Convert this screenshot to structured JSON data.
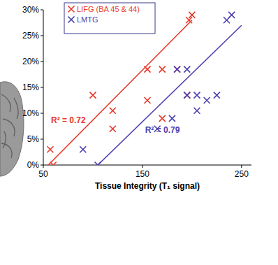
{
  "chart_data": {
    "type": "scatter",
    "x_label": "Tissue Integrity (T₁ signal)",
    "xlim": [
      50,
      260
    ],
    "ylim": [
      0,
      30
    ],
    "xticks": [
      50,
      150,
      250
    ],
    "yticks": [
      {
        "value": 0,
        "label": "0%"
      },
      {
        "value": 5,
        "label": "5%"
      },
      {
        "value": 10,
        "label": "10%"
      },
      {
        "value": 15,
        "label": "15%"
      },
      {
        "value": 20,
        "label": "20%"
      },
      {
        "value": 25,
        "label": "25%"
      },
      {
        "value": 30,
        "label": "30%"
      }
    ],
    "legend": "upper left",
    "marker": "x",
    "series": [
      {
        "name": "LIFG (BA 45 & 44)",
        "color": "#e8382a",
        "x": [
          57,
          60,
          100,
          120,
          120,
          155,
          155,
          170,
          170,
          185,
          195,
          197,
          200
        ],
        "values": [
          3,
          0,
          13.5,
          7,
          10.5,
          12.5,
          18.5,
          18.5,
          9,
          18.5,
          13.5,
          28,
          29
        ],
        "r2_label": "R² = 0.72",
        "trend": {
          "x": [
            55,
            200
          ],
          "values": [
            0,
            28
          ]
        }
      },
      {
        "name": "LMTG",
        "color": "#4b3fb0",
        "x": [
          90,
          105,
          165,
          180,
          185,
          195,
          195,
          205,
          205,
          215,
          225,
          235,
          240
        ],
        "values": [
          3,
          0,
          7,
          9,
          18.5,
          13.5,
          18.5,
          10.5,
          13.5,
          12.5,
          13.5,
          28,
          29
        ],
        "r2_label": "R² = 0.79",
        "trend": {
          "x": [
            105,
            250
          ],
          "values": [
            0,
            27
          ]
        }
      }
    ]
  }
}
